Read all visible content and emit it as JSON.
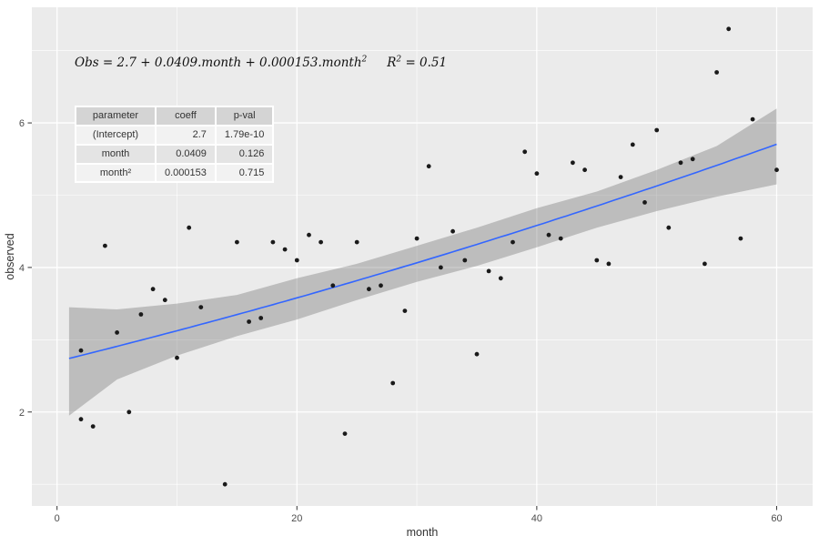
{
  "chart_data": {
    "type": "scatter",
    "title": "",
    "xlabel": "month",
    "ylabel": "observed",
    "xlim": [
      -2.1,
      63.0
    ],
    "ylim": [
      0.7,
      7.6
    ],
    "x_major_ticks": [
      0,
      20,
      40,
      60
    ],
    "x_minor_ticks": [
      10,
      30,
      50
    ],
    "y_major_ticks": [
      2,
      4,
      6
    ],
    "y_minor_ticks": [
      1,
      3,
      5,
      7
    ],
    "grid": true,
    "legend": false,
    "points": [
      [
        2,
        1.9
      ],
      [
        3,
        1.8
      ],
      [
        2,
        2.85
      ],
      [
        4,
        4.3
      ],
      [
        5,
        3.1
      ],
      [
        6,
        2.0
      ],
      [
        7,
        3.35
      ],
      [
        8,
        3.7
      ],
      [
        9,
        3.55
      ],
      [
        10,
        2.75
      ],
      [
        11,
        4.55
      ],
      [
        12,
        3.45
      ],
      [
        14,
        1.0
      ],
      [
        15,
        4.35
      ],
      [
        16,
        3.25
      ],
      [
        17,
        3.3
      ],
      [
        18,
        4.35
      ],
      [
        19,
        4.25
      ],
      [
        20,
        4.1
      ],
      [
        21,
        4.45
      ],
      [
        22,
        4.35
      ],
      [
        23,
        3.75
      ],
      [
        24,
        1.7
      ],
      [
        25,
        4.35
      ],
      [
        26,
        3.7
      ],
      [
        27,
        3.75
      ],
      [
        28,
        2.4
      ],
      [
        29,
        3.4
      ],
      [
        30,
        4.4
      ],
      [
        31,
        5.4
      ],
      [
        32,
        4.0
      ],
      [
        33,
        4.5
      ],
      [
        34,
        4.1
      ],
      [
        35,
        2.8
      ],
      [
        36,
        3.95
      ],
      [
        37,
        3.85
      ],
      [
        38,
        4.35
      ],
      [
        39,
        5.6
      ],
      [
        40,
        5.3
      ],
      [
        41,
        4.45
      ],
      [
        42,
        4.4
      ],
      [
        43,
        5.45
      ],
      [
        44,
        5.35
      ],
      [
        45,
        4.1
      ],
      [
        46,
        4.05
      ],
      [
        47,
        5.25
      ],
      [
        48,
        5.7
      ],
      [
        49,
        4.9
      ],
      [
        50,
        5.9
      ],
      [
        51,
        4.55
      ],
      [
        52,
        5.45
      ],
      [
        53,
        5.5
      ],
      [
        54,
        4.05
      ],
      [
        55,
        6.7
      ],
      [
        56,
        7.3
      ],
      [
        57,
        4.4
      ],
      [
        58,
        6.05
      ],
      [
        60,
        5.35
      ]
    ],
    "regression": {
      "intercept": 2.7,
      "slope": 0.0409,
      "quadratic": 0.000153,
      "x_range": [
        1,
        60
      ],
      "r_squared": 0.51
    },
    "confidence_band": [
      [
        1,
        1.95,
        3.45
      ],
      [
        5,
        2.45,
        3.42
      ],
      [
        10,
        2.78,
        3.5
      ],
      [
        15,
        3.05,
        3.62
      ],
      [
        20,
        3.28,
        3.85
      ],
      [
        25,
        3.55,
        4.05
      ],
      [
        30,
        3.8,
        4.3
      ],
      [
        35,
        4.02,
        4.55
      ],
      [
        40,
        4.28,
        4.82
      ],
      [
        45,
        4.55,
        5.05
      ],
      [
        50,
        4.78,
        5.35
      ],
      [
        55,
        4.98,
        5.68
      ],
      [
        60,
        5.15,
        6.2
      ]
    ],
    "annotation": {
      "equation_prefix": "Obs = 2.7 + 0.0409.month + 0.000153.month",
      "equation_sup": "2",
      "r2_prefix": "R",
      "r2_sup": "2",
      "r2_suffix": " = 0.51"
    },
    "table": {
      "headers": [
        "parameter",
        "coeff",
        "p-val"
      ],
      "rows": [
        [
          "(Intercept)",
          "2.7",
          "1.79e-10"
        ],
        [
          "month",
          "0.0409",
          "0.126"
        ],
        [
          "month²",
          "0.000153",
          "0.715"
        ]
      ]
    },
    "colors": {
      "panel": "#EBEBEB",
      "grid": "#FFFFFF",
      "point": "#1A1A1A",
      "line": "#3366FF",
      "band": "rgba(115,115,115,0.38)",
      "axis_text": "#4D4D4D",
      "axis_title": "#333333"
    }
  }
}
